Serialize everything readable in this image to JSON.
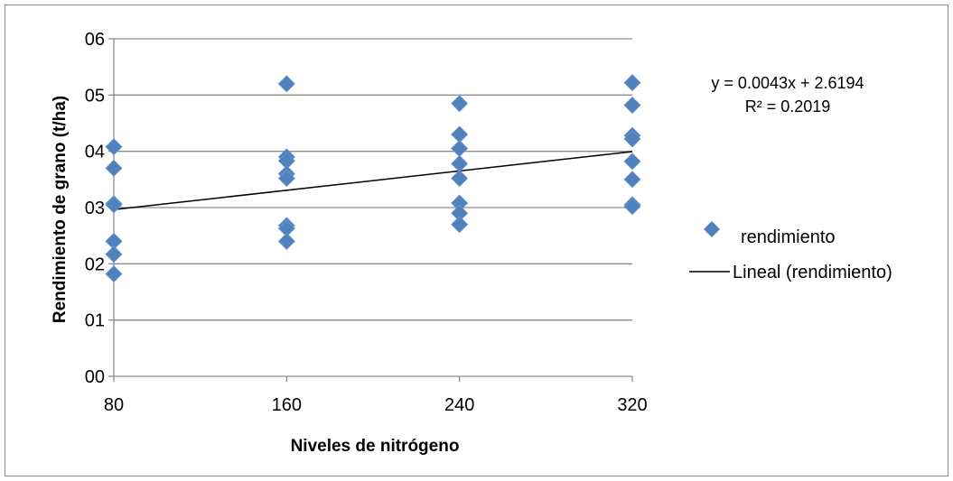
{
  "chart_data": {
    "type": "scatter",
    "xlabel": "Niveles de nitrógeno",
    "ylabel": "Rendimiento de grano (t/ha)",
    "x_ticks": [
      "80",
      "160",
      "240",
      "320"
    ],
    "y_ticks": [
      "00",
      "01",
      "02",
      "03",
      "04",
      "05",
      "06"
    ],
    "xlim": [
      80,
      320
    ],
    "ylim": [
      0,
      6
    ],
    "grid": true,
    "legend_position": "right",
    "series": [
      {
        "name": "rendimiento",
        "color": "#4f81bd",
        "marker": "diamond",
        "points": [
          [
            80,
            4.08
          ],
          [
            80,
            3.7
          ],
          [
            80,
            3.07
          ],
          [
            80,
            3.05
          ],
          [
            80,
            2.4
          ],
          [
            80,
            2.17
          ],
          [
            80,
            1.82
          ],
          [
            160,
            5.2
          ],
          [
            160,
            3.9
          ],
          [
            160,
            3.83
          ],
          [
            160,
            3.6
          ],
          [
            160,
            3.52
          ],
          [
            160,
            2.68
          ],
          [
            160,
            2.63
          ],
          [
            160,
            2.4
          ],
          [
            240,
            4.85
          ],
          [
            240,
            4.3
          ],
          [
            240,
            4.05
          ],
          [
            240,
            3.78
          ],
          [
            240,
            3.52
          ],
          [
            240,
            3.08
          ],
          [
            240,
            2.9
          ],
          [
            240,
            2.7
          ],
          [
            320,
            5.22
          ],
          [
            320,
            4.82
          ],
          [
            320,
            4.28
          ],
          [
            320,
            4.22
          ],
          [
            320,
            3.82
          ],
          [
            320,
            3.5
          ],
          [
            320,
            3.05
          ],
          [
            320,
            3.02
          ]
        ]
      }
    ],
    "trendline": {
      "name": "Lineal (rendimiento)",
      "color": "#000000",
      "slope": 0.0043,
      "intercept": 2.6194
    },
    "annotation": {
      "equation": "y = 0.0043x + 2.6194",
      "r_squared": "R² = 0.2019"
    }
  }
}
